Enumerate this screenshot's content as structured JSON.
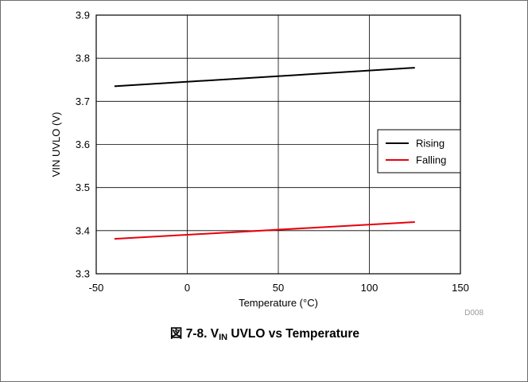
{
  "chart_data": {
    "type": "line",
    "title": "",
    "xlabel": "Temperature (°C)",
    "ylabel": "VIN UVLO (V)",
    "xlim": [
      -50,
      150
    ],
    "ylim": [
      3.3,
      3.9
    ],
    "x_ticks": [
      -50,
      0,
      50,
      100,
      150
    ],
    "y_ticks": [
      3.3,
      3.4,
      3.5,
      3.6,
      3.7,
      3.8,
      3.9
    ],
    "x_tick_labels": [
      "-50",
      "0",
      "50",
      "100",
      "150"
    ],
    "y_tick_labels": [
      "3.3",
      "3.4",
      "3.5",
      "3.6",
      "3.7",
      "3.8",
      "3.9"
    ],
    "grid": true,
    "legend_position": "right",
    "series": [
      {
        "name": "Rising",
        "color": "#000000",
        "x": [
          -40,
          125
        ],
        "y": [
          3.735,
          3.778
        ]
      },
      {
        "name": "Falling",
        "color": "#e8000b",
        "x": [
          -40,
          125
        ],
        "y": [
          3.381,
          3.42
        ]
      }
    ],
    "figure_code": "D008"
  },
  "caption": {
    "prefix": "図 7-8. V",
    "subscript": "IN",
    "suffix": " UVLO vs Temperature"
  }
}
